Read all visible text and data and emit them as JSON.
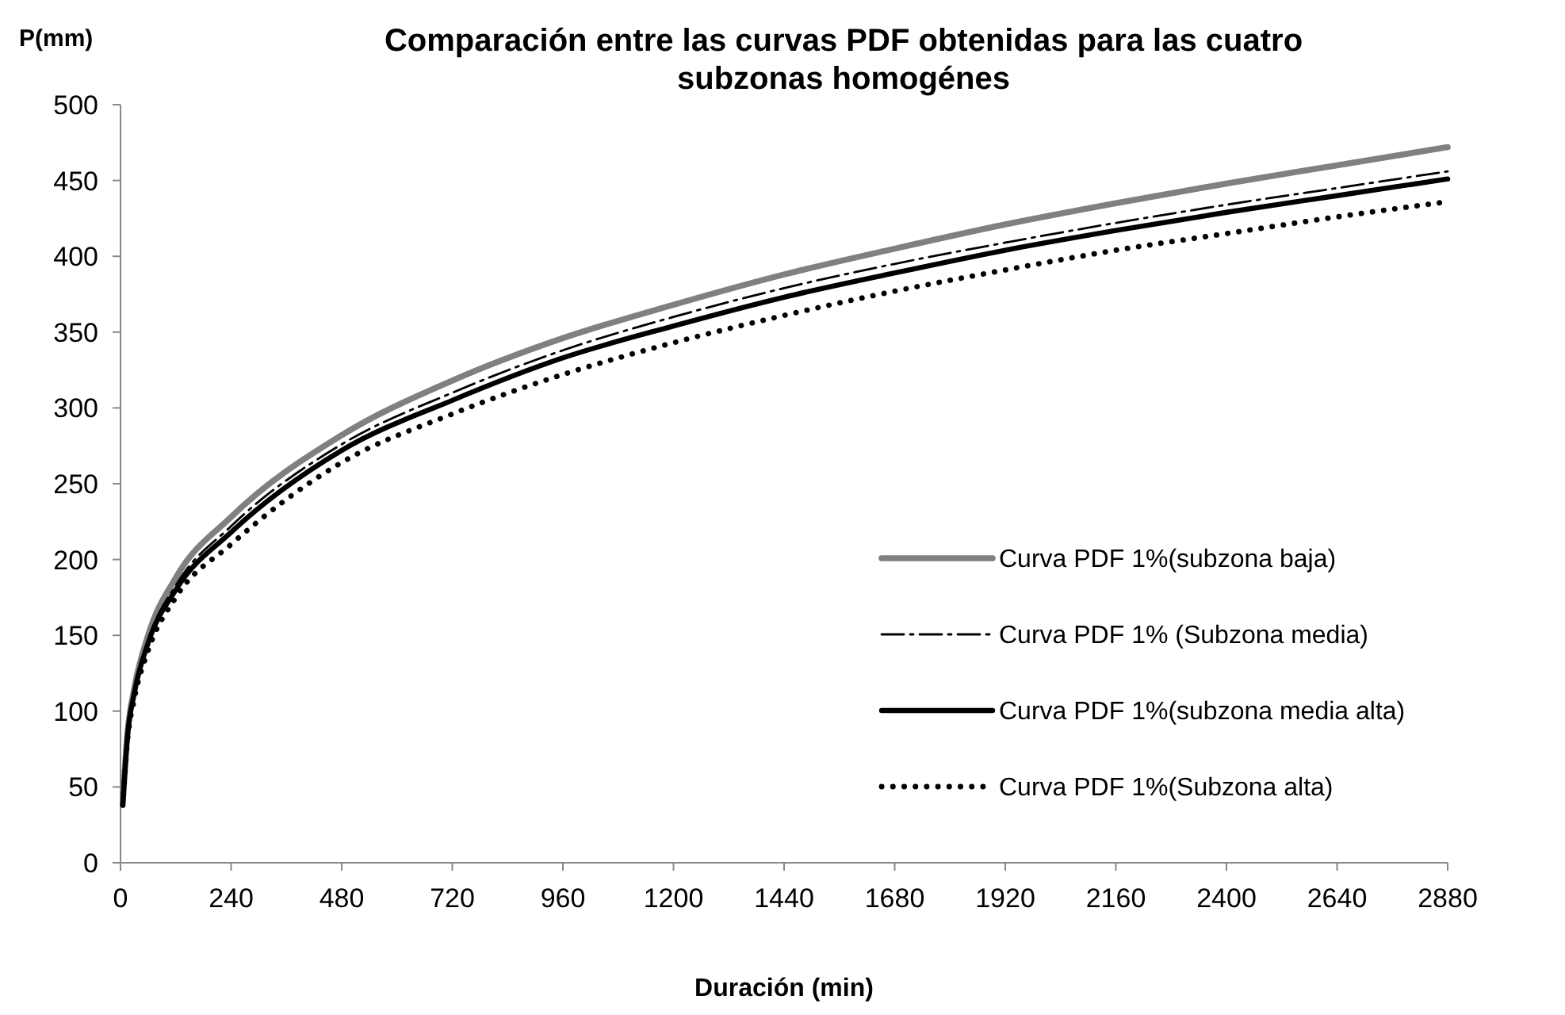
{
  "chart_data": {
    "type": "line",
    "title": "Comparación entre las curvas PDF obtenidas para las cuatro subzonas homogénes",
    "xlabel": "Duración (min)",
    "ylabel": "P(mm)",
    "x": [
      5,
      15,
      30,
      60,
      120,
      240,
      480,
      720,
      960,
      1200,
      1440,
      1680,
      1920,
      2160,
      2400,
      2640,
      2880
    ],
    "series": [
      {
        "name": "Curva PDF 1%(subzona baja)",
        "color": "#808080",
        "line_style": "solid",
        "values": [
          40,
          85,
          115,
          150,
          188,
          228,
          282,
          318,
          346,
          368,
          388,
          405,
          421,
          435,
          448,
          460,
          472
        ]
      },
      {
        "name": "Curva PDF 1% (Subzona media)",
        "color": "#000000",
        "line_style": "dashed",
        "values": [
          39,
          84,
          113,
          147,
          183,
          222,
          276,
          310,
          338,
          360,
          379,
          395,
          409,
          422,
          434,
          445,
          456
        ]
      },
      {
        "name": "Curva PDF 1%(subzona media alta)",
        "color": "#000000",
        "line_style": "solid",
        "values": [
          38,
          83,
          112,
          145,
          180,
          218,
          272,
          305,
          333,
          354,
          373,
          389,
          404,
          417,
          429,
          440,
          451
        ]
      },
      {
        "name": "Curva PDF 1%(Subzona alta)",
        "color": "#000000",
        "line_style": "dotted",
        "values": [
          38,
          80,
          108,
          140,
          175,
          210,
          264,
          296,
          322,
          343,
          361,
          377,
          391,
          404,
          415,
          426,
          436
        ]
      }
    ],
    "xlim": [
      0,
      2880
    ],
    "xticks": [
      0,
      240,
      480,
      720,
      960,
      1200,
      1440,
      1680,
      1920,
      2160,
      2400,
      2640,
      2880
    ],
    "ylim": [
      0,
      500
    ],
    "yticks": [
      0,
      50,
      100,
      150,
      200,
      250,
      300,
      350,
      400,
      450,
      500
    ],
    "grid": false,
    "legend": "bottom right"
  }
}
